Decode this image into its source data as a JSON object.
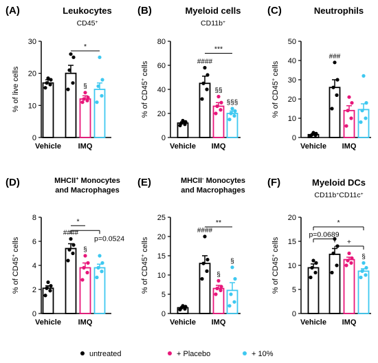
{
  "colors": {
    "untreated": "#000000",
    "placebo": "#e8177a",
    "tenpct": "#3ec8f0"
  },
  "legend": [
    {
      "label": "untreated",
      "color": "#000000"
    },
    {
      "label": "+ Placebo",
      "color": "#e8177a"
    },
    {
      "label": "+ 10%",
      "color": "#3ec8f0"
    }
  ],
  "chart_data": [
    {
      "type": "bar",
      "letter": "(A)",
      "title": "Leukocytes",
      "subtitle": "CD45",
      "subtitle_sup": "+",
      "ylabel": "% of live cells",
      "ylabel_sup": "",
      "ylabel_post": "",
      "ylim": [
        0,
        30
      ],
      "yticks": [
        0,
        10,
        20,
        30
      ],
      "categories": [
        "Vehicle",
        "IMQ"
      ],
      "bars": [
        {
          "group": "Vehicle",
          "series": "untreated",
          "mean": 17,
          "sem": 1,
          "points": [
            15.5,
            16.5,
            17,
            18,
            18.5
          ]
        },
        {
          "group": "IMQ",
          "series": "untreated",
          "mean": 20,
          "sem": 2.5,
          "points": [
            15,
            17,
            21,
            25,
            26
          ]
        },
        {
          "group": "IMQ",
          "series": "+ Placebo",
          "mean": 12,
          "sem": 1,
          "points": [
            11,
            11.5,
            12,
            12.5,
            14
          ],
          "mark": "§"
        },
        {
          "group": "IMQ",
          "series": "+ 10%",
          "mean": 15,
          "sem": 2,
          "points": [
            11,
            13,
            16,
            18,
            25
          ]
        }
      ],
      "annotations": [
        {
          "text": "*",
          "from": 1,
          "to": 3,
          "y": 27
        }
      ]
    },
    {
      "type": "bar",
      "letter": "(B)",
      "title": "Myeloid cells",
      "subtitle": "CD11b",
      "subtitle_sup": "+",
      "ylabel": "% of CD45",
      "ylabel_sup": "+",
      "ylabel_post": " cells",
      "ylim": [
        0,
        80
      ],
      "yticks": [
        0,
        20,
        40,
        60,
        80
      ],
      "categories": [
        "Vehicle",
        "IMQ"
      ],
      "bars": [
        {
          "group": "Vehicle",
          "series": "untreated",
          "mean": 12,
          "sem": 1,
          "points": [
            10,
            11,
            12,
            13,
            14
          ],
          "mark": ""
        },
        {
          "group": "IMQ",
          "series": "untreated",
          "mean": 45,
          "sem": 6,
          "points": [
            32,
            40,
            45,
            52,
            58
          ],
          "mark": "####"
        },
        {
          "group": "IMQ",
          "series": "+ Placebo",
          "mean": 26,
          "sem": 3,
          "points": [
            20,
            23,
            26,
            29,
            34
          ],
          "mark": "§§"
        },
        {
          "group": "IMQ",
          "series": "+ 10%",
          "mean": 20,
          "sem": 2,
          "points": [
            15,
            18,
            20,
            22,
            24
          ],
          "mark": "§§§"
        }
      ],
      "annotations": [
        {
          "text": "***",
          "from": 1,
          "to": 3,
          "y": 70
        }
      ]
    },
    {
      "type": "bar",
      "letter": "(C)",
      "title": "Neutrophils",
      "subtitle": "",
      "subtitle_sup": "",
      "ylabel": "% of CD45",
      "ylabel_sup": "+",
      "ylabel_post": " cells",
      "ylim": [
        0,
        50
      ],
      "yticks": [
        0,
        10,
        20,
        30,
        40,
        50
      ],
      "categories": [
        "Vehicle",
        "IMQ"
      ],
      "bars": [
        {
          "group": "Vehicle",
          "series": "untreated",
          "mean": 1.5,
          "sem": 0.3,
          "points": [
            0.8,
            1.2,
            1.5,
            2,
            2.5
          ],
          "mark": ""
        },
        {
          "group": "IMQ",
          "series": "untreated",
          "mean": 26,
          "sem": 4,
          "points": [
            15,
            22,
            26,
            30,
            39
          ],
          "mark": "###"
        },
        {
          "group": "IMQ",
          "series": "+ Placebo",
          "mean": 14,
          "sem": 2.5,
          "points": [
            6,
            10,
            14,
            18,
            21
          ],
          "mark": ""
        },
        {
          "group": "IMQ",
          "series": "+ 10%",
          "mean": 14.5,
          "sem": 3,
          "points": [
            8,
            10,
            14,
            18,
            32
          ],
          "mark": ""
        }
      ],
      "annotations": []
    },
    {
      "type": "bar",
      "letter": "(D)",
      "title": "MHCII",
      "title_sup": "+",
      "title_post": " Monocytes",
      "title2": "and Macrophages",
      "subtitle": "",
      "subtitle_sup": "",
      "ylabel": "% of CD45",
      "ylabel_sup": "+",
      "ylabel_post": " cells",
      "ylim": [
        0,
        8
      ],
      "yticks": [
        0,
        2,
        4,
        6,
        8
      ],
      "categories": [
        "Vehicle",
        "IMQ"
      ],
      "bars": [
        {
          "group": "Vehicle",
          "series": "untreated",
          "mean": 2.1,
          "sem": 0.2,
          "points": [
            1.5,
            1.9,
            2.1,
            2.3,
            2.6
          ],
          "mark": ""
        },
        {
          "group": "IMQ",
          "series": "untreated",
          "mean": 5.4,
          "sem": 0.4,
          "points": [
            4.4,
            5.0,
            5.3,
            5.7,
            6.2
          ],
          "mark": "####"
        },
        {
          "group": "IMQ",
          "series": "+ Placebo",
          "mean": 3.8,
          "sem": 0.4,
          "points": [
            2.8,
            3.4,
            3.8,
            4.2,
            4.8
          ],
          "mark": "§"
        },
        {
          "group": "IMQ",
          "series": "+ 10%",
          "mean": 3.8,
          "sem": 0.3,
          "points": [
            3.0,
            3.5,
            3.8,
            4.2,
            4.8
          ],
          "mark": ""
        }
      ],
      "annotations": [
        {
          "text": "*",
          "from": 1,
          "to": 2,
          "y": 7.3
        },
        {
          "text": "p=0.0524",
          "from": 1,
          "to": 3,
          "y": 6.9,
          "side": true
        }
      ]
    },
    {
      "type": "bar",
      "letter": "(E)",
      "title": "MHCII",
      "title_sup": "-",
      "title_post": " Monocytes",
      "title2": "and Macrophages",
      "subtitle": "",
      "subtitle_sup": "",
      "ylabel": "% of CD45",
      "ylabel_sup": "+",
      "ylabel_post": " cells",
      "ylim": [
        0,
        25
      ],
      "yticks": [
        0,
        5,
        10,
        15,
        20,
        25
      ],
      "categories": [
        "Vehicle",
        "IMQ"
      ],
      "bars": [
        {
          "group": "Vehicle",
          "series": "untreated",
          "mean": 1.5,
          "sem": 0.2,
          "points": [
            1.0,
            1.2,
            1.5,
            1.8,
            2.0
          ],
          "mark": ""
        },
        {
          "group": "IMQ",
          "series": "untreated",
          "mean": 13,
          "sem": 2,
          "points": [
            9,
            11,
            13,
            14,
            20
          ],
          "mark": "####"
        },
        {
          "group": "IMQ",
          "series": "+ Placebo",
          "mean": 6.5,
          "sem": 0.8,
          "points": [
            5,
            6,
            6.5,
            7,
            8.5
          ],
          "mark": "§"
        },
        {
          "group": "IMQ",
          "series": "+ 10%",
          "mean": 6,
          "sem": 2,
          "points": [
            2,
            3,
            5,
            9,
            12
          ],
          "mark": "§"
        }
      ],
      "annotations": [
        {
          "text": "**",
          "from": 1,
          "to": 3,
          "y": 22.5
        }
      ]
    },
    {
      "type": "bar",
      "letter": "(F)",
      "title": "Myeloid DCs",
      "subtitle": "CD11b",
      "subtitle_sup": "+",
      "subtitle_post": "CD11c",
      "subtitle_post_sup": "+",
      "ylabel": "% of CD45",
      "ylabel_sup": "+",
      "ylabel_post": " cells",
      "ylim": [
        0,
        20
      ],
      "yticks": [
        0,
        5,
        10,
        15,
        20
      ],
      "categories": [
        "Vehicle",
        "IMQ"
      ],
      "bars": [
        {
          "group": "Vehicle",
          "series": "untreated",
          "mean": 9.5,
          "sem": 0.8,
          "points": [
            7.5,
            8.5,
            9.5,
            10.5,
            11
          ],
          "mark": ""
        },
        {
          "group": "IMQ",
          "series": "untreated",
          "mean": 12.3,
          "sem": 1.2,
          "points": [
            8.5,
            10,
            12.5,
            14,
            15.5
          ],
          "mark": ""
        },
        {
          "group": "IMQ",
          "series": "+ Placebo",
          "mean": 11.2,
          "sem": 0.5,
          "points": [
            10,
            10.5,
            11,
            11.5,
            12.5
          ],
          "mark": ""
        },
        {
          "group": "IMQ",
          "series": "+ 10%",
          "mean": 8.8,
          "sem": 0.5,
          "points": [
            7.5,
            8,
            8.8,
            9.5,
            10.5
          ],
          "mark": "§"
        }
      ],
      "annotations": [
        {
          "text": "*",
          "from": 0,
          "to": 3,
          "y": 18
        },
        {
          "text": "p=0.0689",
          "from": 0,
          "to": 1,
          "y": 15.5
        },
        {
          "text": "+",
          "from": 1,
          "to": 3,
          "y": 14
        }
      ]
    }
  ]
}
